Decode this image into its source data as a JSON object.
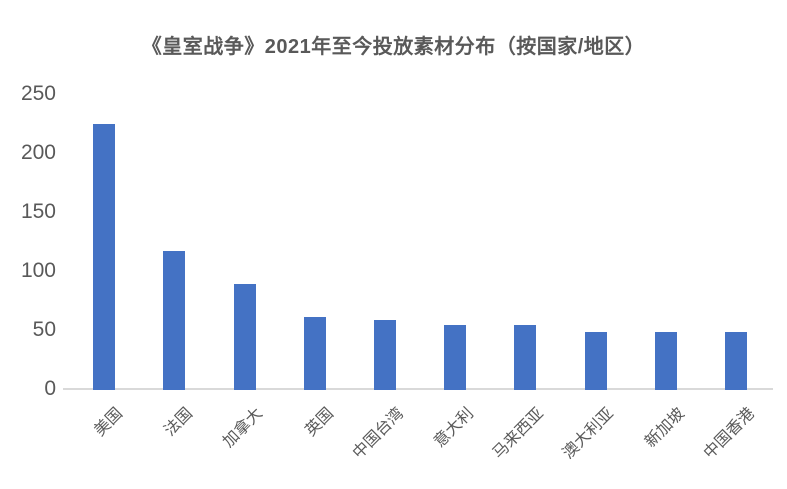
{
  "chart_data": {
    "type": "bar",
    "title": "《皇室战争》2021年至今投放素材分布（按国家/地区）",
    "categories": [
      "美国",
      "法国",
      "加拿大",
      "英国",
      "中国台湾",
      "意大利",
      "马来西亚",
      "澳大利亚",
      "新加坡",
      "中国香港"
    ],
    "values": [
      225,
      118,
      90,
      62,
      59,
      55,
      55,
      49,
      49,
      49
    ],
    "xlabel": "",
    "ylabel": "",
    "ylim": [
      0,
      250
    ],
    "yticks": [
      0,
      50,
      100,
      150,
      200,
      250
    ],
    "grid": false,
    "legend_position": "none",
    "bar_color": "#4472C4",
    "axis_line_color": "#D9D9D9",
    "text_color": "#595959",
    "title_color": "#595959",
    "background_color": "#FFFFFF"
  }
}
